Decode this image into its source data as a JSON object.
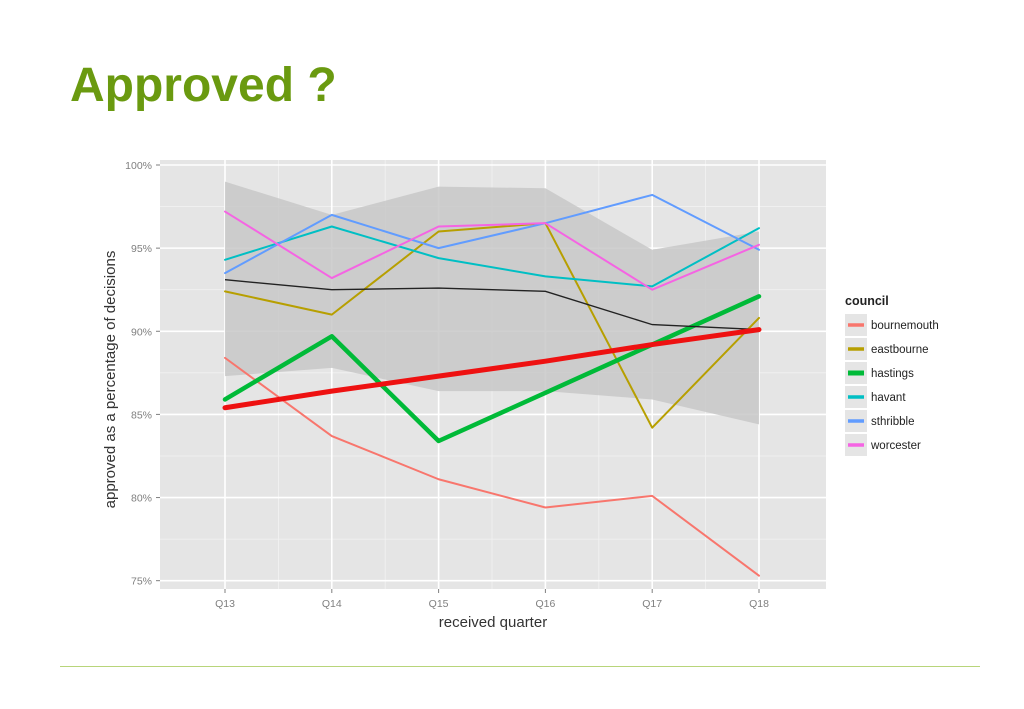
{
  "slide": {
    "title": "Approved ?"
  },
  "chart_data": {
    "type": "line",
    "title": "",
    "xlabel": "received quarter",
    "ylabel": "approved as a percentage of decisions",
    "categories": [
      "Q13",
      "Q14",
      "Q15",
      "Q16",
      "Q17",
      "Q18"
    ],
    "yticks": [
      "75%",
      "80%",
      "85%",
      "90%",
      "95%",
      "100%"
    ],
    "ytick_values": [
      75,
      80,
      85,
      90,
      95,
      100
    ],
    "ylim": [
      74.5,
      100.3
    ],
    "grid": true,
    "legend_position": "right",
    "legend_title": "council",
    "panel_color": "#e5e5e5",
    "series": [
      {
        "name": "bournemouth",
        "color": "#f8766d",
        "values": [
          88.4,
          83.7,
          81.1,
          79.4,
          80.1,
          75.3
        ]
      },
      {
        "name": "eastbourne",
        "color": "#b79f00",
        "values": [
          92.4,
          91.0,
          96.0,
          96.5,
          84.2,
          90.8
        ]
      },
      {
        "name": "hastings",
        "color": "#00ba38",
        "values": [
          85.9,
          89.7,
          83.4,
          86.3,
          89.2,
          92.1
        ]
      },
      {
        "name": "havant",
        "color": "#00bfc4",
        "values": [
          94.3,
          96.3,
          94.4,
          93.3,
          92.7,
          96.2
        ]
      },
      {
        "name": "sthribble",
        "color": "#619cff",
        "values": [
          93.5,
          97.0,
          95.0,
          96.5,
          98.2,
          94.9
        ]
      },
      {
        "name": "worcester",
        "color": "#f564e3",
        "values": [
          97.2,
          93.2,
          96.3,
          96.5,
          92.5,
          95.2
        ]
      }
    ],
    "mean_line": {
      "color": "#222222",
      "values": [
        93.1,
        92.5,
        92.6,
        92.4,
        90.4,
        90.1
      ]
    },
    "trend_line": {
      "color": "#ee1111",
      "values": [
        85.4,
        86.4,
        87.3,
        88.2,
        89.2,
        90.1
      ]
    },
    "band": {
      "color": "#c8c8c8",
      "upper": [
        99.0,
        97.0,
        98.7,
        98.6,
        94.9,
        96.0
      ],
      "lower": [
        87.3,
        87.8,
        86.4,
        86.4,
        85.9,
        84.4
      ]
    }
  }
}
